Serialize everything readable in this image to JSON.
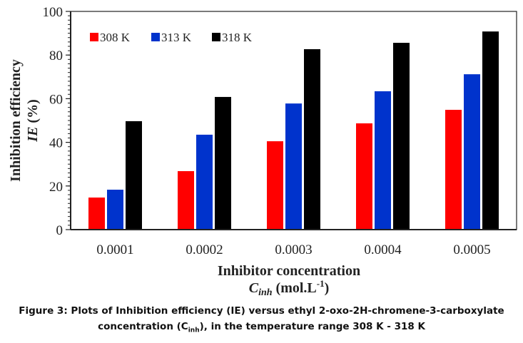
{
  "chart_data": {
    "type": "bar",
    "title": "",
    "xlabel_line1": "Inhibitor  concentration",
    "xlabel_symbol": "C",
    "xlabel_symbol_sub": "inh",
    "xlabel_unit": " (mol.L",
    "xlabel_unit_sup": "-1",
    "xlabel_unit_close": ")",
    "ylabel_line1": "Inhibition  efficiency",
    "ylabel_symbol": "IE",
    "ylabel_unit": " (%)",
    "ylim": [
      0,
      100
    ],
    "yticks": [
      0,
      20,
      40,
      60,
      80,
      100
    ],
    "y_minor_step": 2,
    "grid": false,
    "legend_position": "top-left",
    "categories": [
      "0.0001",
      "0.0002",
      "0.0003",
      "0.0004",
      "0.0005"
    ],
    "series": [
      {
        "name": "308 K",
        "color": "#ff0000",
        "values": [
          14.7,
          26.8,
          40.5,
          48.7,
          54.9
        ]
      },
      {
        "name": "313 K",
        "color": "#0033cc",
        "values": [
          18.3,
          43.5,
          57.8,
          63.4,
          71.2
        ]
      },
      {
        "name": "318 K",
        "color": "#000000",
        "values": [
          49.7,
          60.8,
          82.7,
          85.6,
          90.8
        ]
      }
    ]
  },
  "caption": {
    "line1": "Figure 3: Plots of Inhibition efficiency (IE) versus ethyl 2-oxo-2H-chromene-3-carboxylate",
    "line2_pre": "concentration (C",
    "line2_sub": "inh",
    "line2_post": "), in the temperature range 308 K - 318 K"
  }
}
